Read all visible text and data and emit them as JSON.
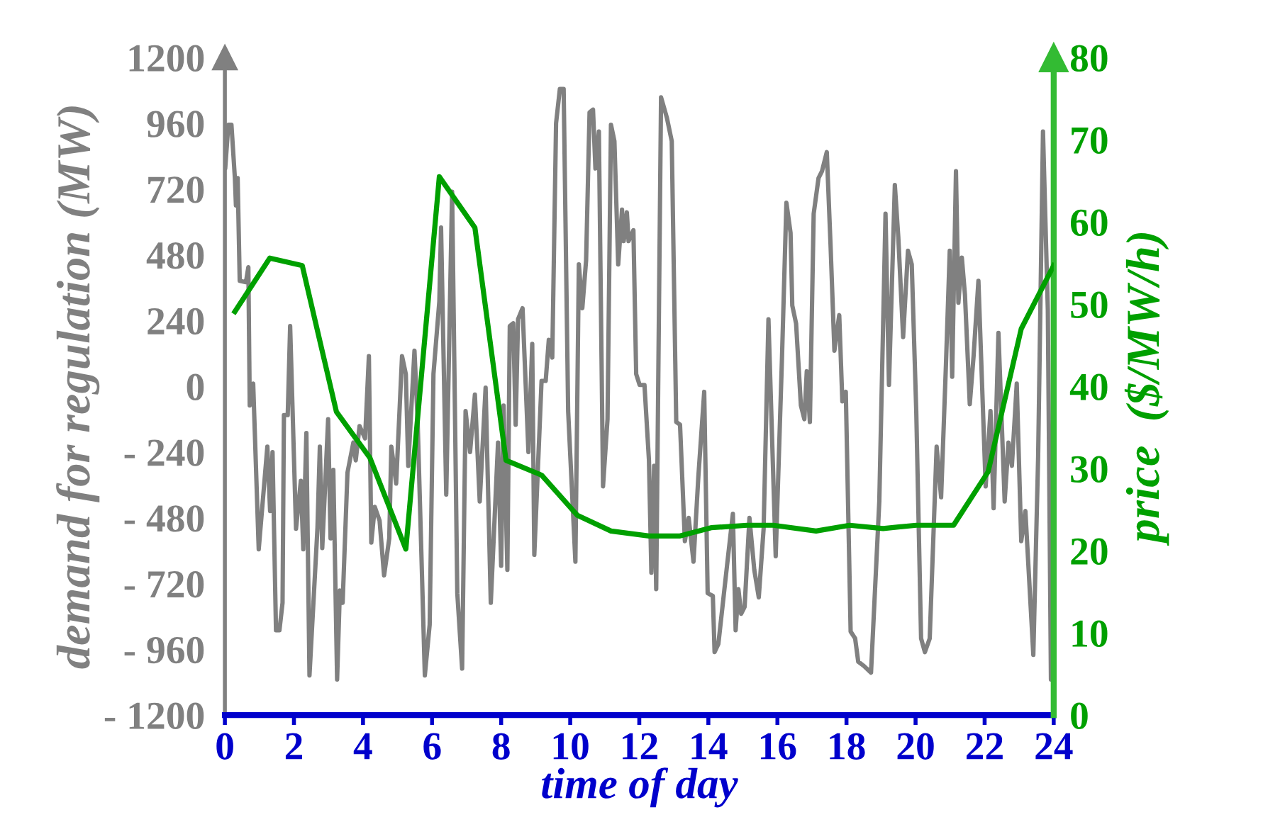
{
  "chart_data": {
    "type": "line",
    "xlabel": "time of day",
    "ylabel": "demand for regulation (MW)",
    "y2label": "price  ($/MW/h)",
    "xlim": [
      0,
      24
    ],
    "xticks": [
      0,
      2,
      4,
      6,
      8,
      10,
      12,
      14,
      16,
      18,
      20,
      22,
      24
    ],
    "ylim": [
      -1200,
      1200
    ],
    "yticks": [
      {
        "value": -1200,
        "label": "- 1200"
      },
      {
        "value": -960,
        "label": "- 960"
      },
      {
        "value": -720,
        "label": "- 720"
      },
      {
        "value": -480,
        "label": "- 480"
      },
      {
        "value": -240,
        "label": "- 240"
      },
      0,
      240,
      480,
      720,
      960,
      1200
    ],
    "y2lim": [
      0,
      80
    ],
    "y2ticks": [
      0,
      10,
      20,
      30,
      40,
      50,
      60,
      70,
      80
    ],
    "grid": false,
    "marker": "none",
    "line_style": "solid",
    "series": [
      {
        "color": "#808080",
        "axis": "y",
        "x": [
          0,
          0.01,
          0.1,
          0.19,
          0.29,
          0.32,
          0.37,
          0.43,
          0.61,
          0.68,
          0.72,
          0.82,
          0.98,
          1.23,
          1.31,
          1.38,
          1.48,
          1.58,
          1.67,
          1.71,
          1.82,
          1.89,
          2.06,
          2.2,
          2.27,
          2.36,
          2.45,
          2.68,
          2.75,
          2.82,
          2.99,
          3.06,
          3.14,
          3.25,
          3.33,
          3.41,
          3.55,
          3.72,
          3.79,
          3.9,
          4.06,
          4.17,
          4.24,
          4.34,
          4.48,
          4.61,
          4.76,
          4.82,
          4.96,
          5.13,
          5.24,
          5.31,
          5.49,
          5.58,
          5.79,
          5.93,
          6.04,
          6.21,
          6.26,
          6.41,
          6.58,
          6.73,
          6.87,
          6.97,
          7.1,
          7.24,
          7.38,
          7.55,
          7.7,
          7.91,
          8.0,
          8.07,
          8.18,
          8.25,
          8.35,
          8.42,
          8.49,
          8.62,
          8.79,
          8.9,
          8.96,
          9.17,
          9.29,
          9.38,
          9.48,
          9.59,
          9.7,
          9.81,
          9.94,
          10.15,
          10.25,
          10.35,
          10.46,
          10.56,
          10.66,
          10.73,
          10.83,
          10.95,
          11.08,
          11.18,
          11.28,
          11.39,
          11.5,
          11.55,
          11.64,
          11.69,
          11.83,
          11.91,
          12.01,
          12.15,
          12.28,
          12.35,
          12.43,
          12.49,
          12.63,
          12.8,
          12.94,
          13.07,
          13.18,
          13.32,
          13.43,
          13.57,
          13.71,
          13.88,
          13.98,
          14.13,
          14.18,
          14.29,
          14.54,
          14.71,
          14.79,
          14.87,
          14.95,
          15.05,
          15.19,
          15.33,
          15.46,
          15.6,
          15.74,
          15.95,
          16.13,
          16.26,
          16.38,
          16.43,
          16.54,
          16.68,
          16.78,
          16.85,
          16.94,
          17.05,
          17.19,
          17.29,
          17.43,
          17.54,
          17.65,
          17.79,
          17.88,
          17.98,
          18.12,
          18.25,
          18.34,
          18.5,
          18.71,
          18.95,
          19.13,
          19.23,
          19.4,
          19.5,
          19.64,
          19.78,
          19.89,
          20.02,
          20.16,
          20.27,
          20.41,
          20.61,
          20.74,
          20.88,
          20.99,
          21.06,
          21.17,
          21.24,
          21.34,
          21.43,
          21.57,
          21.68,
          21.82,
          22.03,
          22.17,
          22.26,
          22.4,
          22.58,
          22.69,
          22.79,
          22.93,
          23.06,
          23.18,
          23.41,
          23.55,
          23.69,
          23.83,
          23.92,
          24
        ],
        "values": [
          820,
          795,
          955,
          955,
          760,
          660,
          760,
          385,
          380,
          435,
          -70,
          10,
          -595,
          -220,
          -455,
          -240,
          -890,
          -890,
          -790,
          -105,
          -105,
          220,
          -520,
          -345,
          -595,
          -170,
          -1055,
          -520,
          -220,
          -590,
          -120,
          -555,
          -305,
          -1070,
          -745,
          -790,
          -315,
          -205,
          -270,
          -145,
          -190,
          110,
          -570,
          -440,
          -490,
          -690,
          -555,
          -220,
          -355,
          110,
          45,
          -290,
          130,
          -120,
          -1055,
          -870,
          45,
          310,
          580,
          -395,
          710,
          -755,
          -1030,
          -90,
          -240,
          -30,
          -420,
          -5,
          -790,
          -205,
          -655,
          -70,
          -670,
          220,
          230,
          -140,
          245,
          285,
          -240,
          155,
          -615,
          20,
          20,
          170,
          105,
          960,
          1085,
          1085,
          -90,
          -640,
          445,
          285,
          460,
          1000,
          1010,
          795,
          930,
          -365,
          -120,
          955,
          895,
          445,
          645,
          530,
          635,
          530,
          570,
          45,
          5,
          5,
          -270,
          -680,
          -290,
          -740,
          1055,
          980,
          895,
          -130,
          -140,
          -565,
          -480,
          -640,
          -330,
          -20,
          -755,
          -765,
          -970,
          -940,
          -655,
          -465,
          -890,
          -740,
          -830,
          -805,
          -480,
          -670,
          -770,
          -520,
          245,
          -620,
          95,
          670,
          560,
          295,
          230,
          -70,
          -120,
          55,
          -130,
          630,
          760,
          785,
          855,
          510,
          130,
          260,
          -55,
          -20,
          -895,
          -920,
          -1005,
          -1020,
          -1045,
          -420,
          630,
          5,
          735,
          545,
          180,
          495,
          445,
          -90,
          -920,
          -970,
          -920,
          -220,
          -405,
          80,
          495,
          35,
          785,
          305,
          470,
          335,
          -65,
          110,
          385,
          -365,
          -90,
          -445,
          195,
          -420,
          -205,
          -290,
          10,
          -565,
          -455,
          -980,
          -255,
          930,
          280,
          -1070,
          -870
        ]
      },
      {
        "color": "#00a000",
        "axis": "y2",
        "x": [
          0.29,
          1.3,
          2.24,
          3.23,
          4.2,
          5.24,
          6.21,
          7.24,
          8.14,
          9.17,
          10.21,
          11.18,
          12.28,
          13.18,
          14.08,
          15.12,
          15.88,
          17.12,
          18.09,
          19.06,
          20.02,
          21.1,
          22.1,
          23.06,
          24
        ],
        "values": [
          49.1,
          55.6,
          54.7,
          36.9,
          31.3,
          20.2,
          65.5,
          59.3,
          31.0,
          29.2,
          24.3,
          22.4,
          21.8,
          21.8,
          22.8,
          23.1,
          23.1,
          22.4,
          23.1,
          22.7,
          23.1,
          23.1,
          29.6,
          47.0,
          54.7
        ]
      }
    ]
  }
}
